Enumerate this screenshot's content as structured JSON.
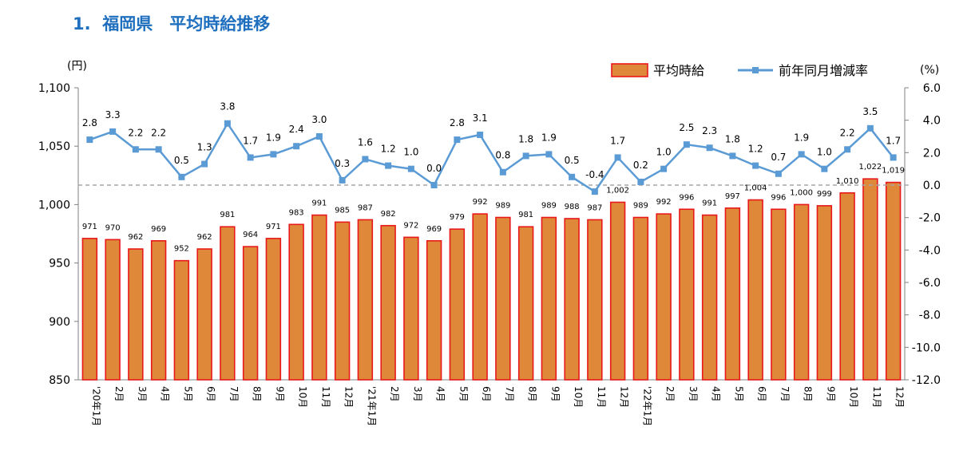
{
  "page": {
    "title": "1.  福岡県　平均時給推移"
  },
  "colors": {
    "bar_fill": "#E0883A",
    "bar_stroke": "#E8191A",
    "line": "#5B9BD5",
    "marker": "#5B9BD5",
    "zero_line": "#A6A6A6",
    "title": "#1F6FBF"
  },
  "chart_data": {
    "type": "bar+line",
    "categories": [
      "'20年1月",
      "2月",
      "3月",
      "4月",
      "5月",
      "6月",
      "7月",
      "8月",
      "9月",
      "10月",
      "11月",
      "12月",
      "'21年1月",
      "2月",
      "3月",
      "4月",
      "5月",
      "6月",
      "7月",
      "8月",
      "9月",
      "10月",
      "11月",
      "12月",
      "'22年1月",
      "2月",
      "3月",
      "4月",
      "5月",
      "6月",
      "7月",
      "8月",
      "9月",
      "10月",
      "11月",
      "12月"
    ],
    "series": [
      {
        "name": "平均時給",
        "type": "bar",
        "axis": "left",
        "values": [
          971,
          970,
          962,
          969,
          952,
          962,
          981,
          964,
          971,
          983,
          991,
          985,
          987,
          982,
          972,
          969,
          979,
          992,
          989,
          981,
          989,
          988,
          987,
          1002,
          989,
          992,
          996,
          991,
          997,
          1004,
          996,
          1000,
          999,
          1010,
          1022,
          1019
        ],
        "labels": [
          "971",
          "970",
          "962",
          "969",
          "952",
          "962",
          "981",
          "964",
          "971",
          "983",
          "991",
          "985",
          "987",
          "982",
          "972",
          "969",
          "979",
          "992",
          "989",
          "981",
          "989",
          "988",
          "987",
          "1,002",
          "989",
          "992",
          "996",
          "991",
          "997",
          "1,004",
          "996",
          "1,000",
          "999",
          "1,010",
          "1,022",
          "1,019"
        ]
      },
      {
        "name": "前年同月増減率",
        "type": "line",
        "axis": "right",
        "values": [
          2.8,
          3.3,
          2.2,
          2.2,
          0.5,
          1.3,
          3.8,
          1.7,
          1.9,
          2.4,
          3.0,
          0.3,
          1.6,
          1.2,
          1.0,
          0.0,
          2.8,
          3.1,
          0.8,
          1.8,
          1.9,
          0.5,
          -0.4,
          1.7,
          0.2,
          1.0,
          2.5,
          2.3,
          1.8,
          1.2,
          0.7,
          1.9,
          1.0,
          2.2,
          3.5,
          1.7
        ],
        "labels": [
          "2.8",
          "3.3",
          "2.2",
          "2.2",
          "0.5",
          "1.3",
          "3.8",
          "1.7",
          "1.9",
          "2.4",
          "3.0",
          "0.3",
          "1.6",
          "1.2",
          "1.0",
          "0.0",
          "2.8",
          "3.1",
          "0.8",
          "1.8",
          "1.9",
          "0.5",
          "-0.4",
          "1.7",
          "0.2",
          "1.0",
          "2.5",
          "2.3",
          "1.8",
          "1.2",
          "0.7",
          "1.9",
          "1.0",
          "2.2",
          "3.5",
          "1.7"
        ]
      }
    ],
    "y_left": {
      "unit": "(円)",
      "ylim": [
        850,
        1100
      ],
      "ticks": [
        850,
        900,
        950,
        1000,
        1050,
        1100
      ],
      "tick_labels": [
        "850",
        "900",
        "950",
        "1,000",
        "1,050",
        "1,100"
      ]
    },
    "y_right": {
      "unit": "(%)",
      "ylim": [
        -12,
        6
      ],
      "ticks": [
        -12,
        -10,
        -8,
        -6,
        -4,
        -2,
        0,
        2,
        4,
        6
      ],
      "tick_labels": [
        "-12.0",
        "-10.0",
        "-8.0",
        "-6.0",
        "-4.0",
        "-2.0",
        "0.0",
        "2.0",
        "4.0",
        "6.0"
      ]
    },
    "zero_reference_line": true,
    "legend_placement": "top-right",
    "grid": false
  }
}
